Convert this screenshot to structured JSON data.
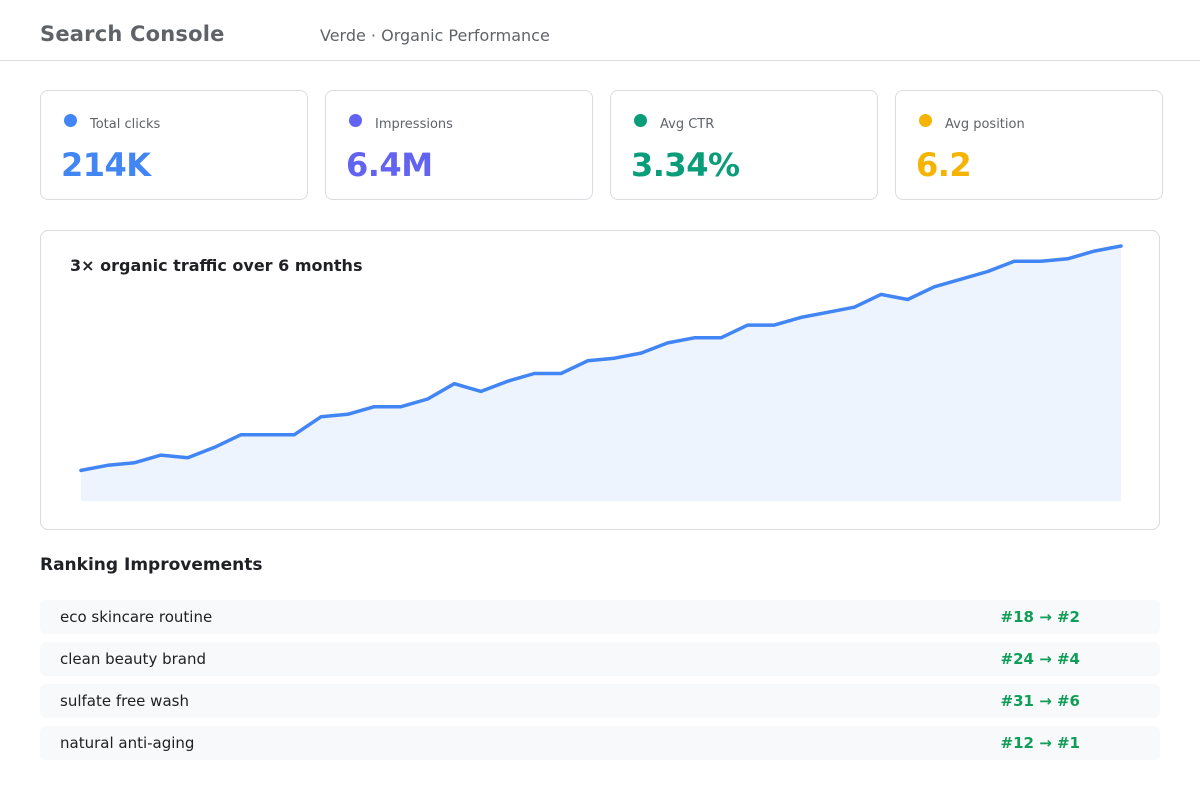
{
  "header": {
    "app_title": "Search Console",
    "property": "Verde · Organic Performance"
  },
  "metrics": [
    {
      "label": "Total clicks",
      "value": "214K",
      "color": "#4285f4"
    },
    {
      "label": "Impressions",
      "value": "6.4M",
      "color": "#6363f1"
    },
    {
      "label": "Avg CTR",
      "value": "3.34%",
      "color": "#0a9d7a"
    },
    {
      "label": "Avg position",
      "value": "6.2",
      "color": "#f4b400"
    }
  ],
  "chart": {
    "title": "3× organic traffic over 6 months"
  },
  "chart_data": {
    "type": "area",
    "title": "3× organic traffic over 6 months",
    "line_color": "#4285f4",
    "fill_color": "#eef4fd",
    "ylim": [
      0,
      100
    ],
    "values": [
      12,
      14,
      15,
      18,
      17,
      21,
      26,
      26,
      26,
      33,
      34,
      37,
      37,
      40,
      46,
      43,
      47,
      50,
      50,
      55,
      56,
      58,
      62,
      64,
      64,
      69,
      69,
      72,
      74,
      76,
      81,
      79,
      84,
      87,
      90,
      94,
      94,
      95,
      98,
      100
    ]
  },
  "rankings": {
    "title": "Ranking Improvements",
    "rows": [
      {
        "keyword": "eco skincare routine",
        "change": "#18 → #2"
      },
      {
        "keyword": "clean beauty brand",
        "change": "#24 → #4"
      },
      {
        "keyword": "sulfate free wash",
        "change": "#31 → #6"
      },
      {
        "keyword": "natural anti-aging",
        "change": "#12 → #1"
      }
    ]
  }
}
